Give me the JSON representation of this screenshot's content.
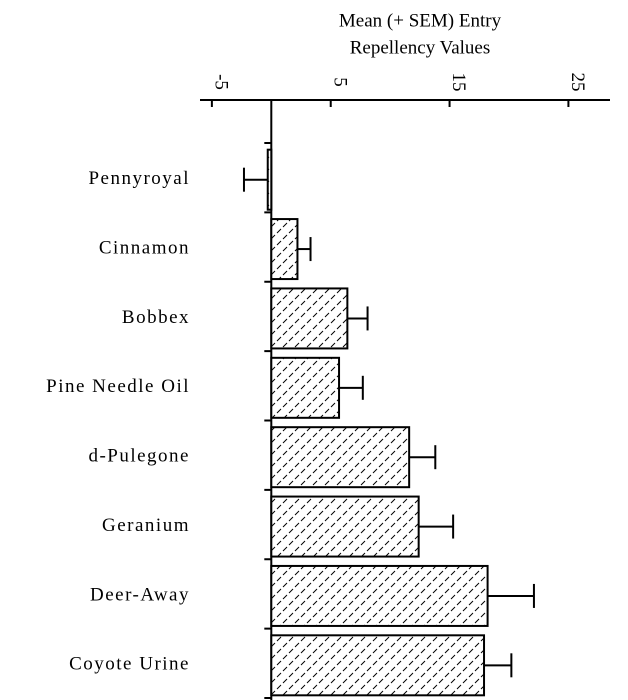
{
  "chart_data": {
    "type": "hbar",
    "title_lines": [
      "Mean (+ SEM) Entry",
      "Repellency Values"
    ],
    "categories": [
      "Pennyroyal",
      "Cinnamon",
      "Bobbex",
      "Pine Needle Oil",
      "d-Pulegone",
      "Geranium",
      "Deer-Away",
      "Coyote Urine"
    ],
    "values": [
      -0.3,
      2.2,
      6.4,
      5.7,
      11.6,
      12.4,
      18.2,
      17.9
    ],
    "errors": [
      2.0,
      1.1,
      1.7,
      2.0,
      2.2,
      2.9,
      3.9,
      2.3
    ],
    "xlim": [
      -6,
      28.5
    ],
    "xticks": [
      -5,
      5,
      15,
      25
    ],
    "color": "#000000"
  }
}
